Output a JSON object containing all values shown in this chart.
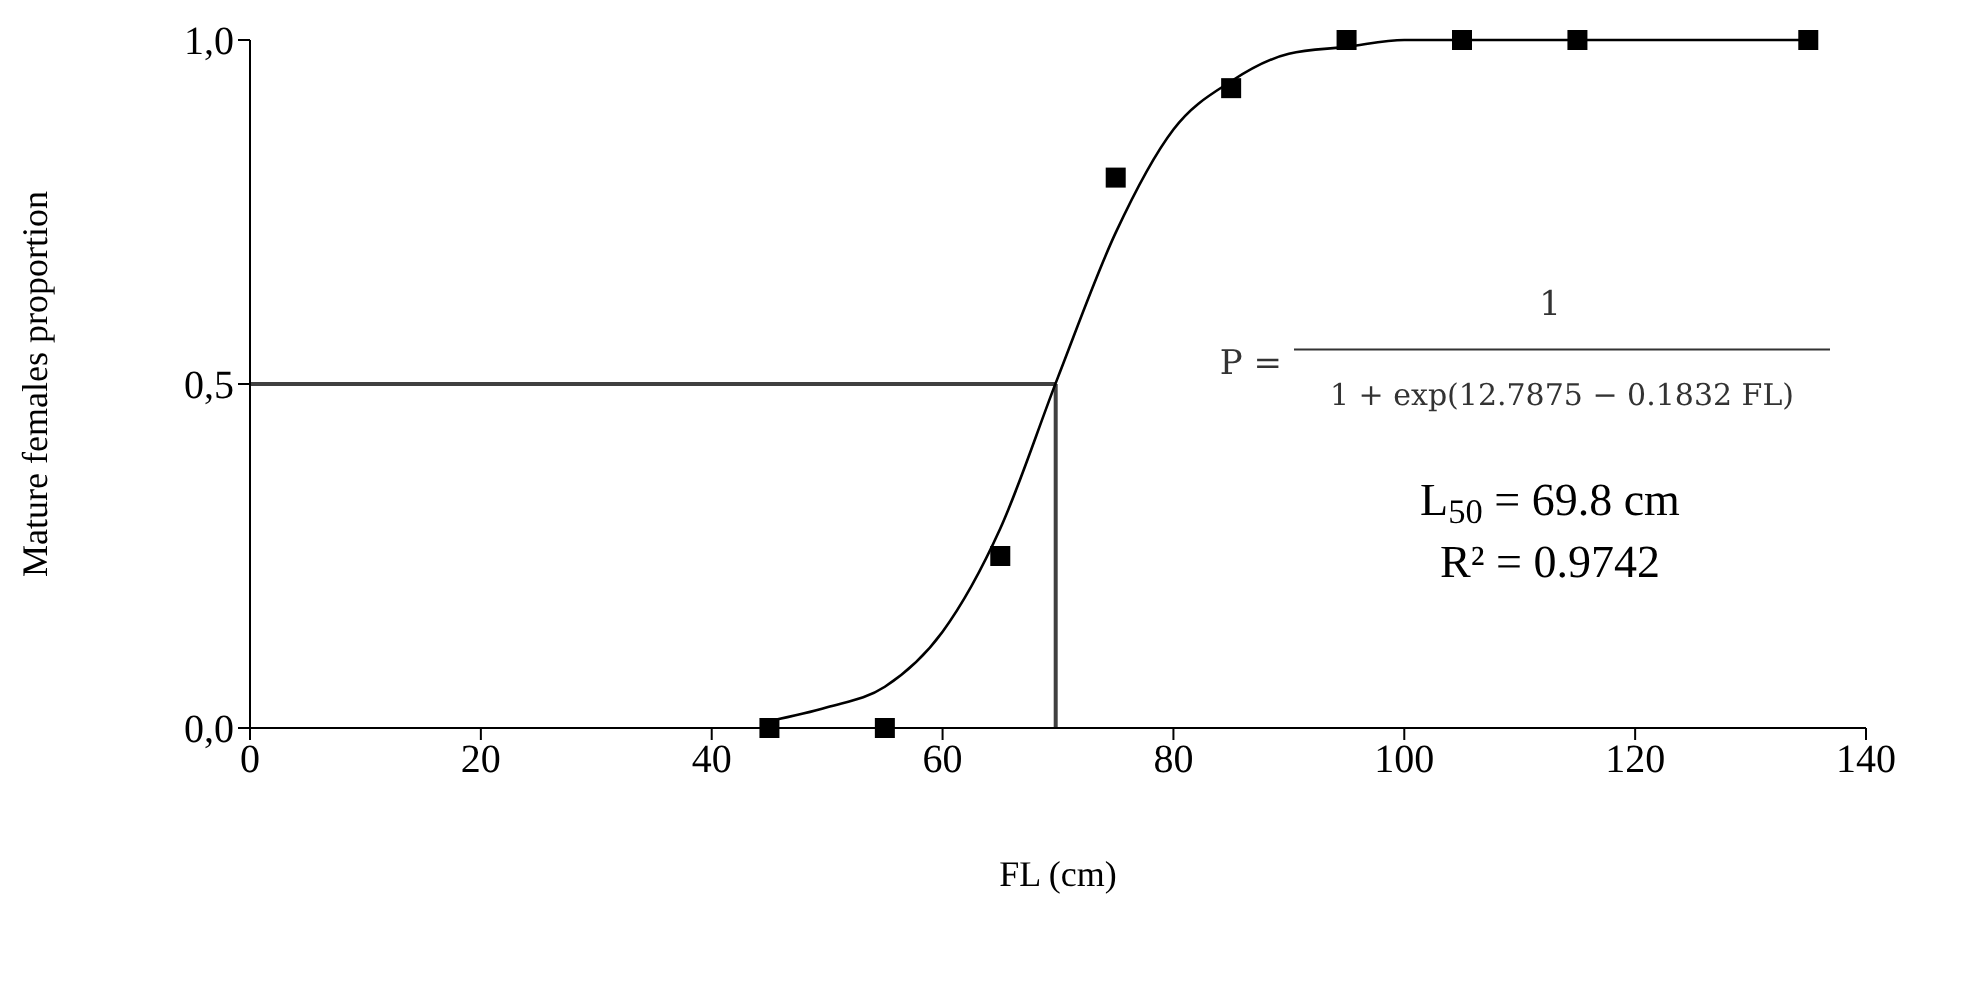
{
  "chart_data": {
    "type": "scatter",
    "xlabel": "FL (cm)",
    "ylabel": "Mature females proportion",
    "xlim": [
      0,
      140
    ],
    "xticks": [
      0,
      20,
      40,
      60,
      80,
      100,
      120,
      140
    ],
    "ylim": [
      0,
      1
    ],
    "yticks": [
      {
        "value": 0,
        "label": "0,0"
      },
      {
        "value": 0.5,
        "label": "0,5"
      },
      {
        "value": 1,
        "label": "1,0"
      }
    ],
    "grid": false,
    "marker": "square",
    "series": [
      {
        "color": "#000000",
        "x": [
          45,
          55,
          65,
          75,
          85,
          95,
          105,
          115,
          135
        ],
        "values": [
          0,
          0,
          0.25,
          0.8,
          0.93,
          1,
          1,
          1,
          1
        ]
      },
      {
        "type": "line",
        "color": "#000000",
        "marker": "none",
        "line_style": "solid",
        "x": [
          45,
          50,
          55,
          60,
          65,
          70,
          75,
          80,
          85,
          90,
          95,
          100,
          110,
          120,
          135
        ],
        "values": [
          0.01,
          0.03,
          0.06,
          0.14,
          0.29,
          0.51,
          0.72,
          0.87,
          0.94,
          0.98,
          0.99,
          1,
          1,
          1,
          1
        ]
      }
    ],
    "ref_lines": [
      {
        "axis": "y",
        "value": 0.5,
        "color": "#404040"
      },
      {
        "axis": "x",
        "value": 69.8,
        "color": "#404040"
      }
    ],
    "annotations": [
      "P =",
      "1",
      "1 + exp(12.7875 − 0.1832 FL)",
      "L$_{50}$ = 69.8 cm",
      "R² = 0.9742"
    ]
  }
}
